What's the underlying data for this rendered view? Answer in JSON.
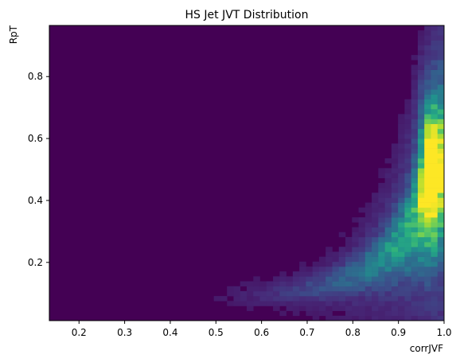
{
  "chart_data": {
    "type": "heatmap",
    "title": "HS Jet JVT Distribution",
    "xlabel": "corrJVF",
    "ylabel": "RpT",
    "xlim": [
      0.135,
      1.0
    ],
    "ylim": [
      0.012,
      0.965
    ],
    "x_ticks": [
      "0.2",
      "0.3",
      "0.4",
      "0.5",
      "0.6",
      "0.7",
      "0.8",
      "0.9",
      "1.0"
    ],
    "y_ticks": [
      "0.2",
      "0.4",
      "0.6",
      "0.8"
    ],
    "colormap": "viridis",
    "grid": false,
    "description_of_density": "Counts concentrated along a curved band: near RpT 0.07–0.15 for corrJVF 0.6–0.85, rising steeply to RpT 0.3–0.65 at corrJVF 0.93–0.99; peak near corrJVF 0.975, RpT 0.55.",
    "bins": {
      "nx": 60,
      "ny": 60
    }
  },
  "colors": {
    "background_bin": "#440154",
    "peak_bin": "#fde725",
    "axis": "#000000"
  }
}
